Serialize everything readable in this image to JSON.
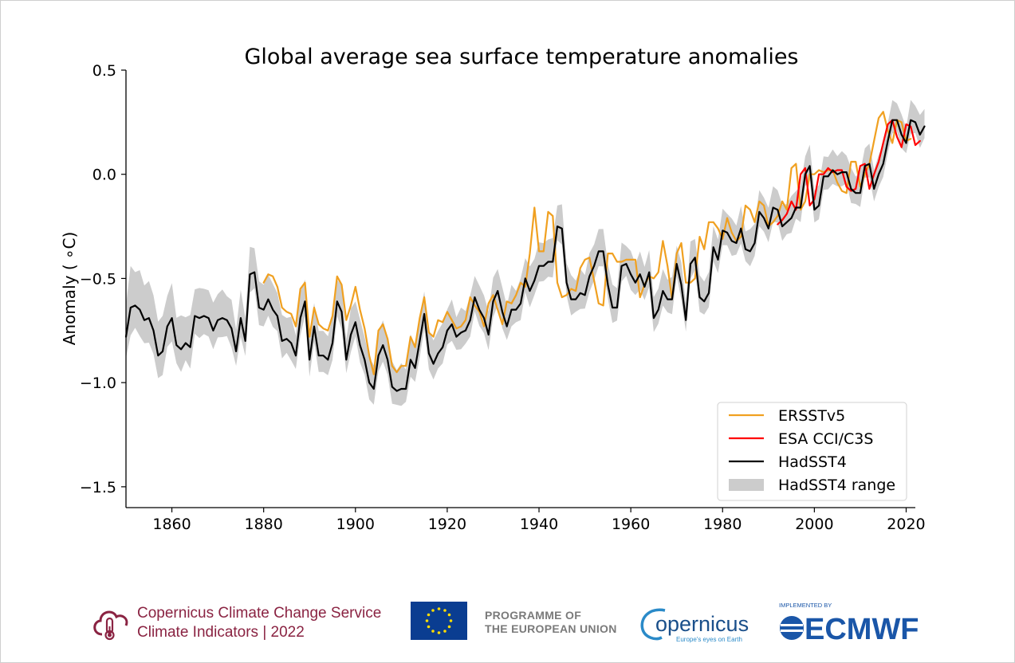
{
  "chart_data": {
    "type": "line",
    "title": "Global average sea surface temperature anomalies",
    "xlabel": "",
    "ylabel": "Anomaly ( ∘C)",
    "xlim": [
      1850,
      2022
    ],
    "ylim": [
      -1.6,
      0.5
    ],
    "xticks": [
      1860,
      1880,
      1900,
      1920,
      1940,
      1960,
      1980,
      2000,
      2020
    ],
    "yticks": [
      0.5,
      0.0,
      -0.5,
      -1.0,
      -1.5
    ],
    "ytick_labels": [
      "0.5",
      "0.0",
      "−0.5",
      "−1.0",
      "−1.5"
    ],
    "legend_position": "lower-right",
    "series": [
      {
        "name": "ERSSTv5",
        "color": "#f0a020",
        "x_start": 1880,
        "values": [
          -0.52,
          -0.48,
          -0.49,
          -0.54,
          -0.64,
          -0.66,
          -0.67,
          -0.73,
          -0.55,
          -0.52,
          -0.78,
          -0.64,
          -0.72,
          -0.74,
          -0.75,
          -0.68,
          -0.49,
          -0.53,
          -0.7,
          -0.63,
          -0.54,
          -0.65,
          -0.74,
          -0.87,
          -0.96,
          -0.75,
          -0.72,
          -0.79,
          -0.92,
          -0.95,
          -0.92,
          -0.92,
          -0.78,
          -0.83,
          -0.69,
          -0.59,
          -0.76,
          -0.78,
          -0.7,
          -0.71,
          -0.66,
          -0.7,
          -0.74,
          -0.73,
          -0.7,
          -0.59,
          -0.63,
          -0.66,
          -0.73,
          -0.62,
          -0.58,
          -0.65,
          -0.72,
          -0.61,
          -0.62,
          -0.58,
          -0.52,
          -0.54,
          -0.38,
          -0.16,
          -0.37,
          -0.37,
          -0.18,
          -0.2,
          -0.52,
          -0.59,
          -0.58,
          -0.55,
          -0.56,
          -0.45,
          -0.41,
          -0.4,
          -0.51,
          -0.62,
          -0.63,
          -0.38,
          -0.38,
          -0.42,
          -0.42,
          -0.41,
          -0.41,
          -0.41,
          -0.59,
          -0.53,
          -0.49,
          -0.5,
          -0.47,
          -0.32,
          -0.44,
          -0.6,
          -0.38,
          -0.33,
          -0.52,
          -0.52,
          -0.5,
          -0.3,
          -0.36,
          -0.23,
          -0.23,
          -0.26,
          -0.31,
          -0.21,
          -0.28,
          -0.32,
          -0.3,
          -0.15,
          -0.17,
          -0.23,
          -0.13,
          -0.15,
          -0.25,
          -0.23,
          -0.2,
          -0.13,
          -0.17,
          0.03,
          0.05,
          -0.17,
          -0.13,
          0.0,
          0.0,
          0.02,
          0.01,
          0.02,
          0.02,
          -0.04,
          -0.08,
          -0.09,
          0.06,
          0.06,
          -0.06,
          0.0,
          0.05,
          0.16,
          0.27,
          0.3,
          0.21,
          0.15,
          0.26,
          0.25,
          0.16,
          0.17
        ]
      },
      {
        "name": "ESA CCI/C3S",
        "color": "#ff0000",
        "x_start": 1992,
        "values": [
          -0.24,
          -0.22,
          -0.19,
          -0.13,
          -0.17,
          0.0,
          0.03,
          -0.15,
          -0.12,
          0.0,
          0.0,
          0.03,
          0.01,
          0.02,
          0.02,
          -0.06,
          -0.08,
          -0.07,
          0.04,
          0.05,
          -0.07,
          0.0,
          0.06,
          0.15,
          0.24,
          0.26,
          0.18,
          0.13,
          0.24,
          0.23,
          0.14,
          0.16
        ]
      },
      {
        "name": "HadSST4",
        "color": "#000000",
        "x_start": 1850,
        "values": [
          -0.78,
          -0.64,
          -0.63,
          -0.65,
          -0.7,
          -0.69,
          -0.75,
          -0.87,
          -0.85,
          -0.73,
          -0.69,
          -0.82,
          -0.84,
          -0.81,
          -0.83,
          -0.68,
          -0.69,
          -0.68,
          -0.69,
          -0.75,
          -0.7,
          -0.69,
          -0.7,
          -0.74,
          -0.85,
          -0.69,
          -0.8,
          -0.48,
          -0.47,
          -0.64,
          -0.65,
          -0.6,
          -0.65,
          -0.68,
          -0.8,
          -0.79,
          -0.81,
          -0.87,
          -0.69,
          -0.61,
          -0.89,
          -0.73,
          -0.87,
          -0.87,
          -0.89,
          -0.81,
          -0.61,
          -0.66,
          -0.89,
          -0.77,
          -0.71,
          -0.82,
          -0.89,
          -1.0,
          -1.03,
          -0.87,
          -0.82,
          -0.89,
          -1.02,
          -1.04,
          -1.03,
          -1.03,
          -0.89,
          -0.93,
          -0.8,
          -0.67,
          -0.86,
          -0.91,
          -0.86,
          -0.83,
          -0.75,
          -0.72,
          -0.78,
          -0.76,
          -0.75,
          -0.7,
          -0.59,
          -0.65,
          -0.69,
          -0.77,
          -0.61,
          -0.56,
          -0.66,
          -0.73,
          -0.65,
          -0.65,
          -0.62,
          -0.5,
          -0.56,
          -0.51,
          -0.44,
          -0.44,
          -0.42,
          -0.42,
          -0.25,
          -0.26,
          -0.52,
          -0.6,
          -0.6,
          -0.57,
          -0.58,
          -0.49,
          -0.44,
          -0.37,
          -0.37,
          -0.53,
          -0.64,
          -0.64,
          -0.44,
          -0.43,
          -0.48,
          -0.52,
          -0.48,
          -0.54,
          -0.47,
          -0.69,
          -0.65,
          -0.56,
          -0.6,
          -0.6,
          -0.43,
          -0.53,
          -0.7,
          -0.43,
          -0.4,
          -0.59,
          -0.61,
          -0.57,
          -0.35,
          -0.41,
          -0.27,
          -0.28,
          -0.32,
          -0.33,
          -0.26,
          -0.36,
          -0.37,
          -0.33,
          -0.18,
          -0.21,
          -0.26,
          -0.16,
          -0.17,
          -0.25,
          -0.23,
          -0.21,
          -0.16,
          -0.16,
          0.0,
          0.04,
          -0.17,
          -0.15,
          -0.01,
          -0.01,
          0.02,
          0.0,
          0.01,
          0.01,
          -0.07,
          -0.09,
          -0.09,
          0.04,
          0.05,
          -0.07,
          0.0,
          0.05,
          0.16,
          0.26,
          0.26,
          0.19,
          0.15,
          0.26,
          0.25,
          0.19,
          0.23
        ]
      }
    ],
    "band": {
      "name": "HadSST4 range",
      "color": "#cccccc",
      "spread": [
        0.34,
        0.24,
        0.21,
        0.21,
        0.2,
        0.2,
        0.19,
        0.18,
        0.18,
        0.17,
        0.16
      ]
    },
    "legend": [
      {
        "label": "ERSSTv5",
        "kind": "line",
        "color": "#f0a020"
      },
      {
        "label": "ESA CCI/C3S",
        "kind": "line",
        "color": "#ff0000"
      },
      {
        "label": "HadSST4",
        "kind": "line",
        "color": "#000000"
      },
      {
        "label": "HadSST4 range",
        "kind": "patch",
        "color": "#cccccc"
      }
    ]
  },
  "footer": {
    "c3s_line1": "Copernicus Climate Change Service",
    "c3s_line2": "Climate Indicators | 2022",
    "eu_line1": "PROGRAMME OF",
    "eu_line2": "THE EUROPEAN UNION",
    "copernicus_word": "opernicus",
    "copernicus_tagline": "Europe's eyes on Earth",
    "ecmwf_caption": "IMPLEMENTED BY",
    "ecmwf_word": "ECMWF",
    "c3s_color": "#8a2342",
    "eu_blue": "#0a3d91",
    "eu_star": "#ffdd00",
    "ecmwf_color": "#1a56a8"
  }
}
